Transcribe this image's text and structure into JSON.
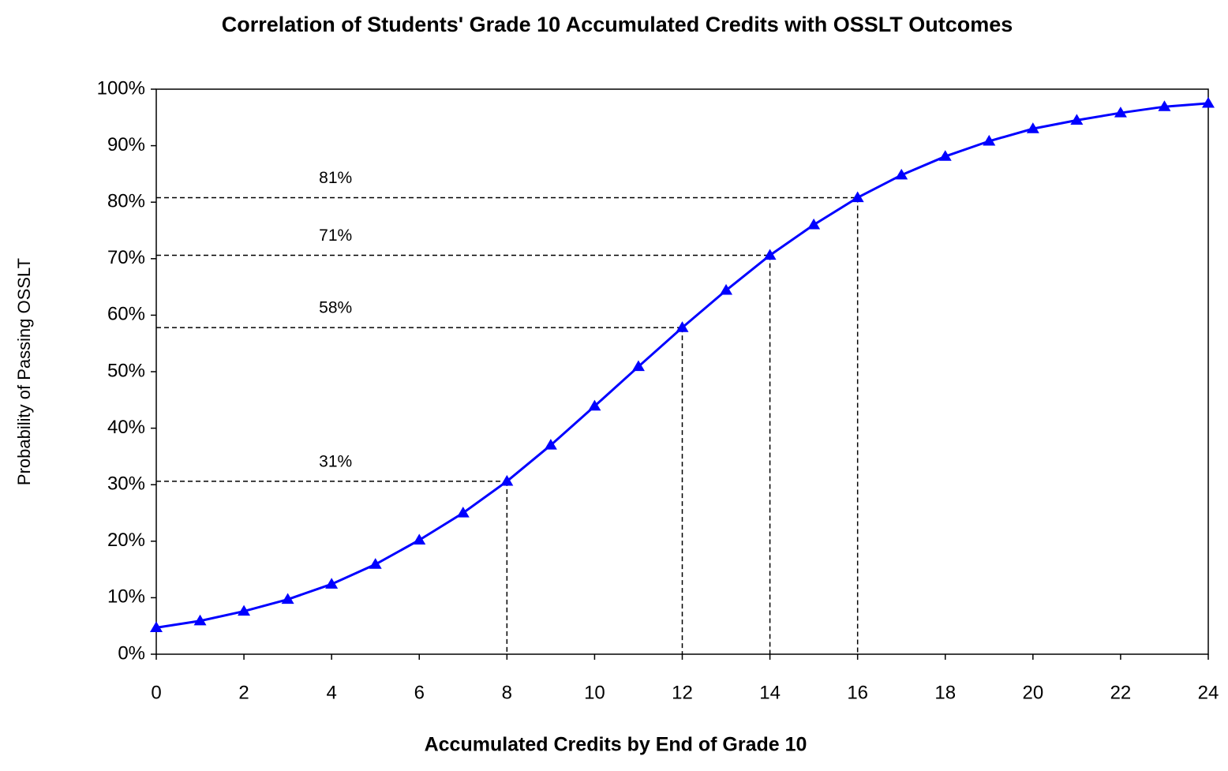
{
  "chart_data": {
    "type": "line",
    "title": "Correlation of Students' Grade 10 Accumulated Credits with OSSLT Outcomes",
    "xlabel": "Accumulated Credits by End of Grade 10",
    "ylabel": "Probability of Passing OSSLT",
    "x": [
      0,
      1,
      2,
      3,
      4,
      5,
      6,
      7,
      8,
      9,
      10,
      11,
      12,
      13,
      14,
      15,
      16,
      17,
      18,
      19,
      20,
      21,
      22,
      23,
      24
    ],
    "series": [
      {
        "color": "#0000ff",
        "marker": "triangle",
        "values": [
          4.7,
          5.9,
          7.6,
          9.7,
          12.4,
          15.9,
          20.2,
          25.0,
          30.6,
          37.0,
          43.9,
          50.9,
          57.8,
          64.4,
          70.6,
          76.0,
          80.8,
          84.8,
          88.1,
          90.8,
          93.0,
          94.5,
          95.8,
          96.9,
          97.5
        ]
      }
    ],
    "xlim": [
      0,
      24
    ],
    "xticks": [
      0,
      2,
      4,
      6,
      8,
      10,
      12,
      14,
      16,
      18,
      20,
      22,
      24
    ],
    "ylim": [
      0,
      100
    ],
    "yticks": [
      {
        "value": 0,
        "label": "0%"
      },
      {
        "value": 10,
        "label": "10%"
      },
      {
        "value": 20,
        "label": "20%"
      },
      {
        "value": 30,
        "label": "30%"
      },
      {
        "value": 40,
        "label": "40%"
      },
      {
        "value": 50,
        "label": "50%"
      },
      {
        "value": 60,
        "label": "60%"
      },
      {
        "value": 70,
        "label": "70%"
      },
      {
        "value": 80,
        "label": "80%"
      },
      {
        "value": 90,
        "label": "90%"
      },
      {
        "value": 100,
        "label": "100%"
      }
    ],
    "grid": false,
    "annotations": [
      {
        "x": 8,
        "y": 30.6,
        "label": "31%"
      },
      {
        "x": 12,
        "y": 57.8,
        "label": "58%"
      },
      {
        "x": 14,
        "y": 70.6,
        "label": "71%"
      },
      {
        "x": 16,
        "y": 80.8,
        "label": "81%"
      }
    ]
  }
}
